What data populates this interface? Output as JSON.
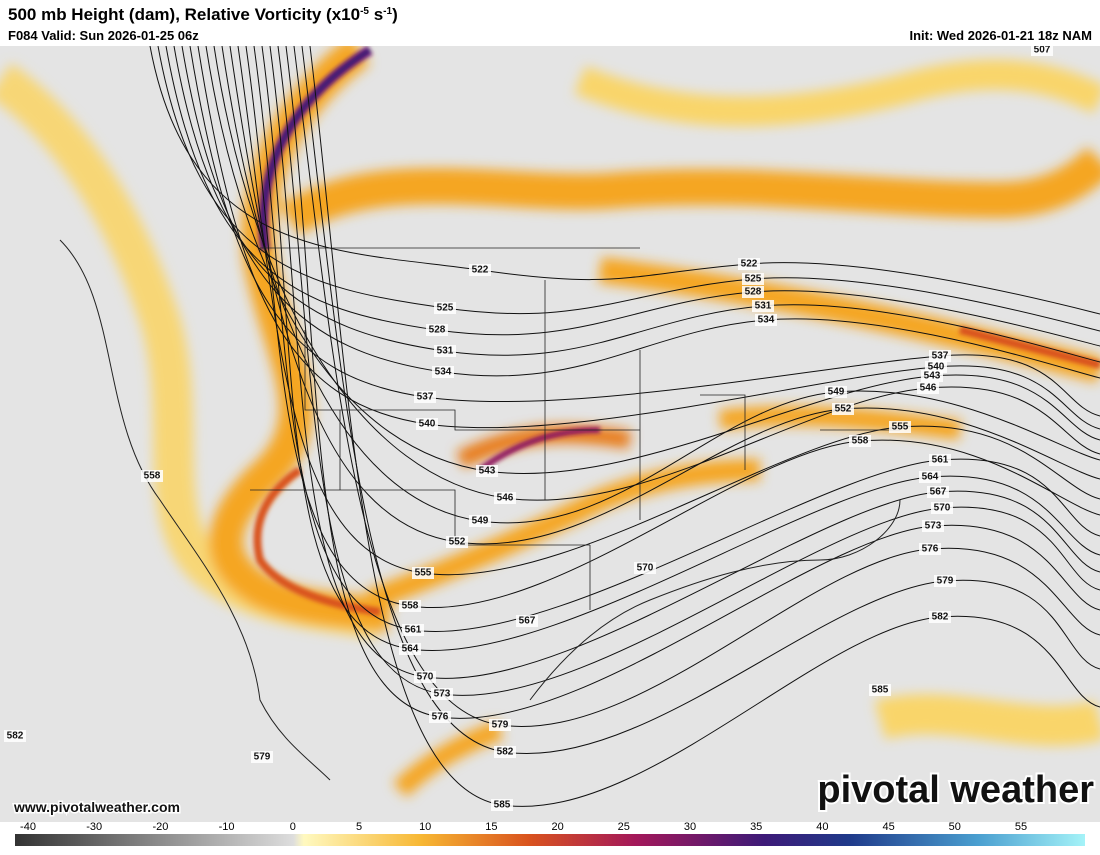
{
  "header": {
    "title": [
      "500 mb Height (dam), Relative Vorticity (x10",
      "-5",
      " s",
      "-1",
      ")"
    ],
    "valid": "F084 Valid: Sun 2026-01-25 06z",
    "init": "Init: Wed 2026-01-21 18z NAM"
  },
  "contour_labels": {
    "west": [
      522,
      525,
      528,
      531,
      534,
      537,
      540,
      543,
      546,
      549,
      552,
      555,
      558,
      561,
      564,
      570,
      573,
      576,
      579,
      582,
      585
    ],
    "east": [
      522,
      525,
      528,
      531,
      534,
      537,
      540,
      543,
      546,
      549,
      552,
      555,
      558,
      561,
      564,
      567,
      570,
      573,
      576,
      579,
      582,
      585
    ],
    "other": [
      567,
      570,
      558,
      582,
      579,
      507
    ]
  },
  "footer": {
    "website": "www.pivotalweather.com",
    "logo": "pivotal weather"
  },
  "colorbar": {
    "ticks": [
      -40,
      -30,
      -20,
      -10,
      0,
      5,
      10,
      15,
      20,
      25,
      30,
      35,
      40,
      45,
      50,
      55
    ]
  }
}
